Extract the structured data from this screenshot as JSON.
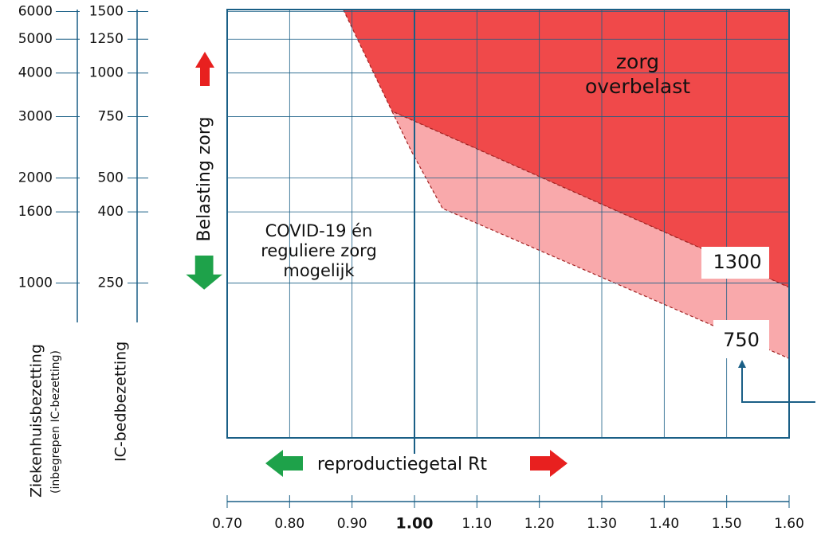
{
  "chart_data": {
    "type": "region",
    "xlabel": "reproductiegetal Rt",
    "xlim": [
      0.7,
      1.6
    ],
    "xticks": [
      {
        "value": 0.7,
        "label": "0.70"
      },
      {
        "value": 0.8,
        "label": "0.80"
      },
      {
        "value": 0.9,
        "label": "0.90"
      },
      {
        "value": 1,
        "label": "1.00"
      },
      {
        "value": 1.1,
        "label": "1.10"
      },
      {
        "value": 1.2,
        "label": "1.20"
      },
      {
        "value": 1.3,
        "label": "1.30"
      },
      {
        "value": 1.4,
        "label": "1.40"
      },
      {
        "value": 1.5,
        "label": "1.50"
      },
      {
        "value": 1.6,
        "label": "1.60"
      }
    ],
    "ylabel": "IC-bedbezetting",
    "ylim": [
      90,
      1520
    ],
    "log": true,
    "yticks": [
      250,
      400,
      500,
      750,
      1000,
      1250,
      1500
    ],
    "y2label": "Ziekenhuisbezetting",
    "y2sublabel": "(inbegrepen IC-bezetting)",
    "y2lim": [
      360,
      6080
    ],
    "y2ticks": [
      1000,
      1600,
      2000,
      3000,
      4000,
      5000,
      6000
    ],
    "grid": true,
    "regions": [
      {
        "label": "zorg overbelast",
        "color": "#f0494a",
        "x": [
          0.886,
          0.964,
          1.6,
          1.6
        ],
        "values": [
          1520,
          777,
          243,
          1520
        ]
      },
      {
        "color": "#f9a9ab",
        "x": [
          0.964,
          0.995,
          1.045,
          1.6,
          1.6
        ],
        "values": [
          777,
          597,
          409,
          152,
          243
        ]
      }
    ],
    "annotations": {
      "load": "Belasting zorg",
      "safe": "COVID-19 én reguliere zorg mogelijk",
      "upper": "1300",
      "lower": "750"
    }
  }
}
